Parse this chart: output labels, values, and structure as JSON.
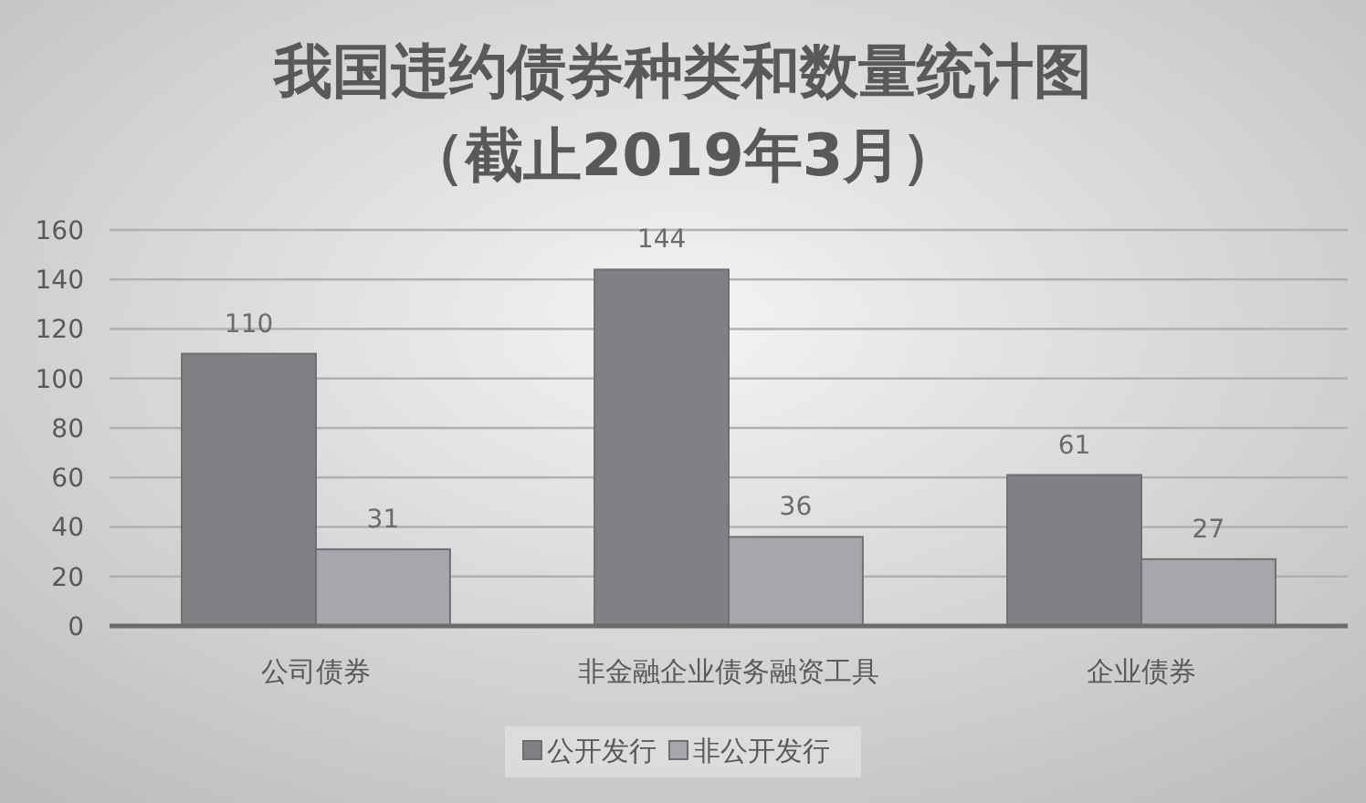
{
  "chart_data": {
    "type": "bar",
    "title": "我国违约债券种类和数量统计图",
    "subtitle": "（截止2019年3月）",
    "categories": [
      "公司债券",
      "非金融企业债务融资工具",
      "企业债券"
    ],
    "series": [
      {
        "name": "公开发行",
        "color": "#808184",
        "values": [
          110,
          144,
          61
        ]
      },
      {
        "name": "非公开发行",
        "color": "#a6a7aa",
        "values": [
          31,
          36,
          27
        ]
      }
    ],
    "ylim": [
      0,
      160
    ],
    "yticks": [
      0,
      20,
      40,
      60,
      80,
      100,
      120,
      140,
      160
    ],
    "grid": "y",
    "legend": "bottom",
    "data_labels": true
  }
}
